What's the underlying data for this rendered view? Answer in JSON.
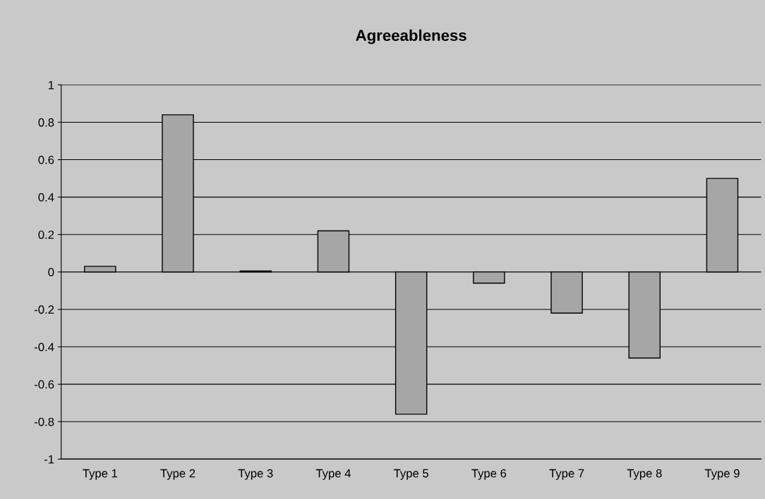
{
  "chart_data": {
    "type": "bar",
    "title": "Agreeableness",
    "categories": [
      "Type 1",
      "Type 2",
      "Type 3",
      "Type 4",
      "Type 5",
      "Type 6",
      "Type 7",
      "Type 8",
      "Type 9"
    ],
    "values": [
      0.03,
      0.84,
      0.005,
      0.22,
      -0.76,
      -0.06,
      -0.22,
      -0.46,
      0.5
    ],
    "color": "#a6a6a6",
    "ylim": [
      -1,
      1
    ],
    "yticks": [
      -1,
      -0.8,
      -0.6,
      -0.4,
      -0.2,
      0,
      0.2,
      0.4,
      0.6,
      0.8,
      1
    ],
    "grid": "y",
    "legend": false
  }
}
